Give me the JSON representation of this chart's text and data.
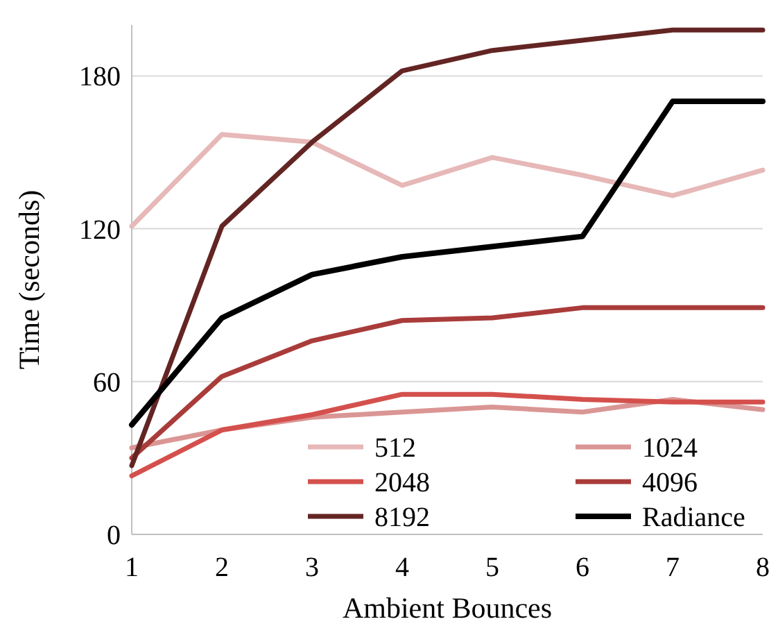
{
  "chart_data": {
    "type": "line",
    "xlabel": "Ambient Bounces",
    "ylabel": "Time (seconds)",
    "x": [
      1,
      2,
      3,
      4,
      5,
      6,
      7,
      8
    ],
    "xlim": [
      1,
      8
    ],
    "xticks": [
      1,
      2,
      3,
      4,
      5,
      6,
      7,
      8
    ],
    "ylim": [
      0,
      200
    ],
    "yticks": [
      0,
      60,
      120,
      180
    ],
    "grid": "y",
    "legend": "bottom right",
    "line_style": "solid",
    "series": [
      {
        "name": "512",
        "color": "#e6b8b7",
        "values": [
          121,
          157,
          154,
          137,
          148,
          141,
          133,
          143
        ]
      },
      {
        "name": "1024",
        "color": "#da9694",
        "values": [
          34,
          41,
          46,
          48,
          50,
          48,
          53,
          49
        ]
      },
      {
        "name": "2048",
        "color": "#d4504d",
        "values": [
          23,
          41,
          47,
          55,
          55,
          53,
          52,
          52
        ]
      },
      {
        "name": "4096",
        "color": "#a93c3a",
        "values": [
          30,
          62,
          76,
          84,
          85,
          89,
          89,
          89
        ]
      },
      {
        "name": "8192",
        "color": "#632523",
        "values": [
          27,
          121,
          154,
          182,
          190,
          194,
          198,
          198
        ]
      },
      {
        "name": "Radiance",
        "color": "#000000",
        "values": [
          43,
          85,
          102,
          109,
          113,
          117,
          170,
          170
        ]
      }
    ]
  }
}
